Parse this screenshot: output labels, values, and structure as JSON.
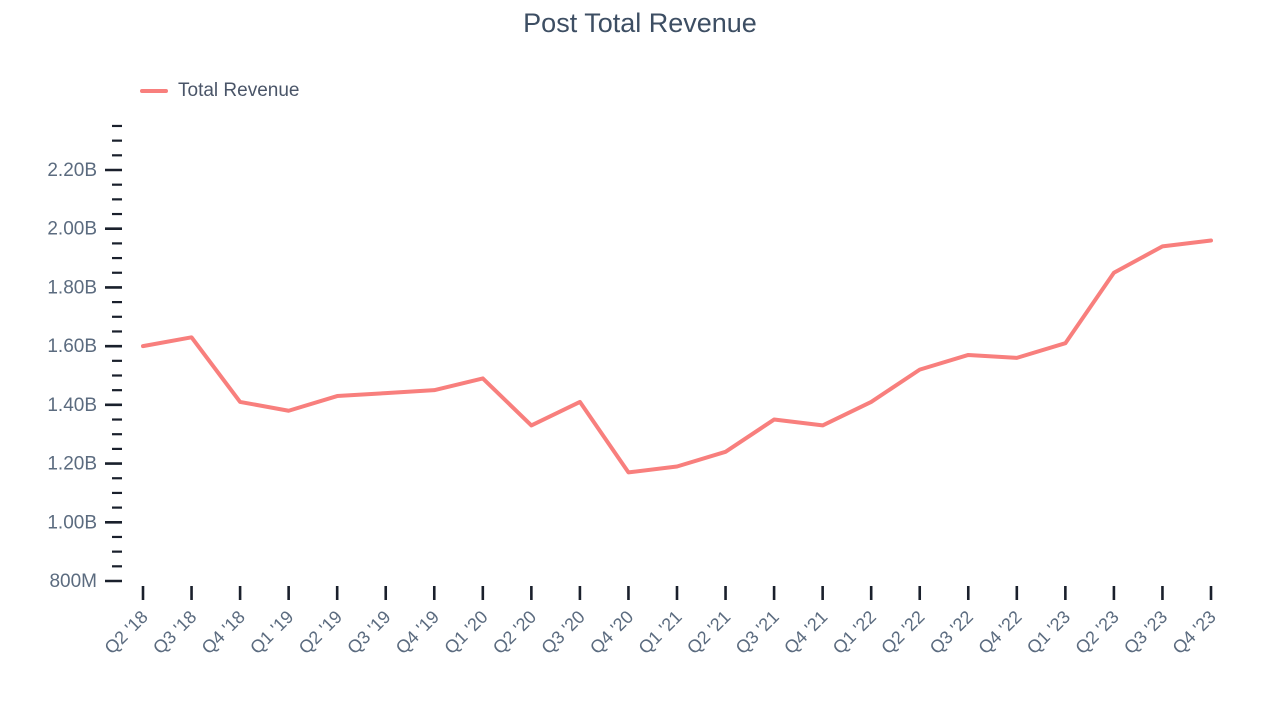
{
  "chart_data": {
    "type": "line",
    "title": "Post Total Revenue",
    "xlabel": "",
    "ylabel": "",
    "unit": "USD",
    "grid": false,
    "legend_position": "top-left",
    "line_color": "#f87f7d",
    "categories": [
      "Q2 '18",
      "Q3 '18",
      "Q4 '18",
      "Q1 '19",
      "Q2 '19",
      "Q3 '19",
      "Q4 '19",
      "Q1 '20",
      "Q2 '20",
      "Q3 '20",
      "Q4 '20",
      "Q1 '21",
      "Q2 '21",
      "Q3 '21",
      "Q4 '21",
      "Q1 '22",
      "Q2 '22",
      "Q3 '22",
      "Q4 '22",
      "Q1 '23",
      "Q2 '23",
      "Q3 '23",
      "Q4 '23"
    ],
    "series": [
      {
        "name": "Total Revenue",
        "values": [
          1.6,
          1.63,
          1.41,
          1.38,
          1.43,
          1.44,
          1.45,
          1.49,
          1.33,
          1.41,
          1.17,
          1.19,
          1.24,
          1.35,
          1.33,
          1.41,
          1.52,
          1.57,
          1.56,
          1.61,
          1.85,
          1.94,
          1.96
        ]
      }
    ],
    "ylim": [
      0.8,
      2.35
    ],
    "y_major_ticks": [
      0.8,
      1.0,
      1.2,
      1.4,
      1.6,
      1.8,
      2.0,
      2.2
    ],
    "y_tick_labels": [
      "800M",
      "1.00B",
      "1.20B",
      "1.40B",
      "1.60B",
      "1.80B",
      "2.00B",
      "2.20B"
    ],
    "y_minor_tick_step": 0.05,
    "axis_tick_color": "#1a202c",
    "axis_label_color": "#5b6b7f",
    "title_color": "#3d4e63"
  }
}
